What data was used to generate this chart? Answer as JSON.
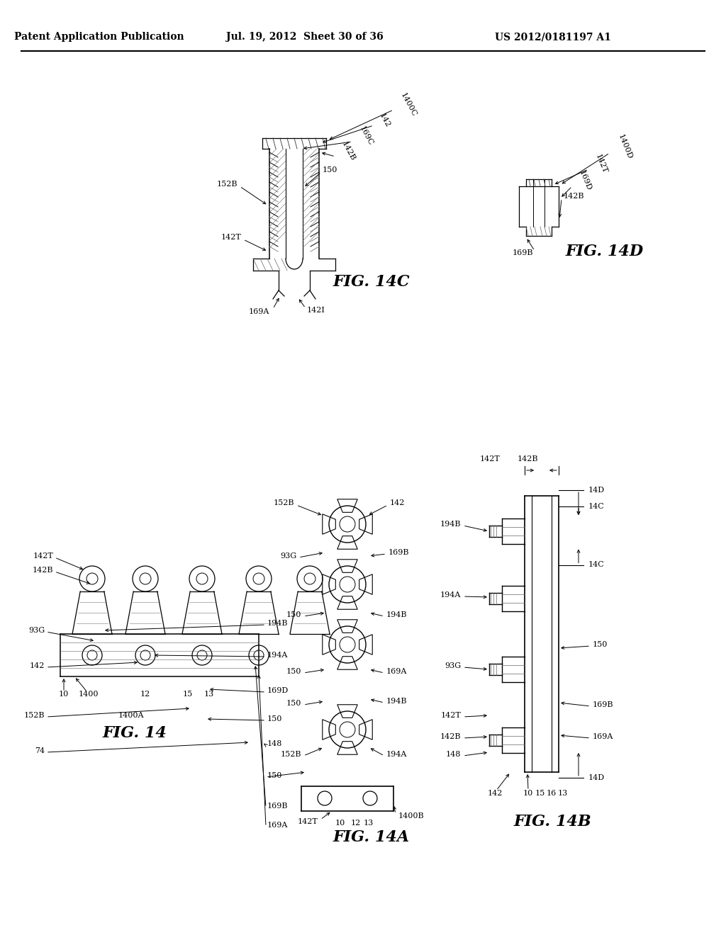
{
  "background_color": "#ffffff",
  "header_left": "Patent Application Publication",
  "header_center": "Jul. 19, 2012  Sheet 30 of 36",
  "header_right": "US 2012/0181197 A1"
}
